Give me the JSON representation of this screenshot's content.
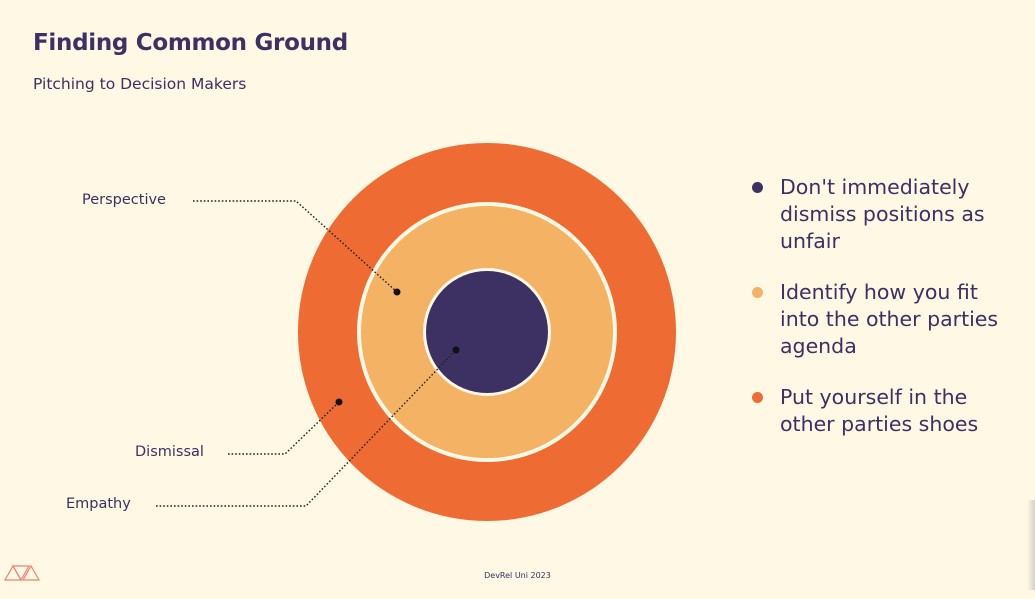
{
  "slide": {
    "title": "Finding Common Ground",
    "subtitle": "Pitching to Decision Makers",
    "footer": "DevRel Uni 2023"
  },
  "diagram": {
    "rings": [
      {
        "name": "Dismissal",
        "color": "#ee6b33"
      },
      {
        "name": "Perspective",
        "color": "#f4b265"
      },
      {
        "name": "Empathy",
        "color": "#3d3063"
      }
    ],
    "labels": {
      "perspective": "Perspective",
      "dismissal": "Dismissal",
      "empathy": "Empathy"
    }
  },
  "bullets": [
    {
      "text": "Don't immediately dismiss positions as unfair",
      "color": "#3d3063"
    },
    {
      "text": "Identify how you fit into the other parties agenda",
      "color": "#f4b265"
    },
    {
      "text": "Put yourself in the other parties shoes",
      "color": "#ee6b33"
    }
  ],
  "colors": {
    "background": "#fef8e4",
    "navy": "#3d3063",
    "orange": "#ee6b33",
    "peach": "#f4b265",
    "cream_ring": "#fef8e4"
  },
  "icons": {
    "logo": "triangles-logo-icon"
  }
}
